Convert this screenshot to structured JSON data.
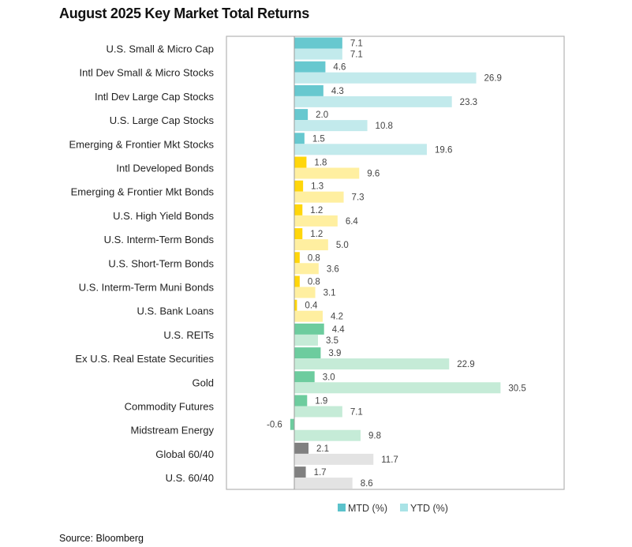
{
  "chart_data": {
    "type": "bar",
    "orientation": "horizontal",
    "title": "August 2025 Key Market Total Returns",
    "source": "Source: Bloomberg",
    "categories": [
      "U.S. Small & Micro Cap",
      "Intl Dev Small & Micro Stocks",
      "Intl Dev Large Cap Stocks",
      "U.S. Large Cap Stocks",
      "Emerging & Frontier Mkt Stocks",
      "Intl Developed Bonds",
      "Emerging & Frontier Mkt Bonds",
      "U.S. High Yield Bonds",
      "U.S. Interm-Term Bonds",
      "U.S. Short-Term Bonds",
      "U.S. Interm-Term Muni Bonds",
      "U.S. Bank Loans",
      "U.S. REITs",
      "Ex U.S. Real Estate Securities",
      "Gold",
      "Commodity Futures",
      "Midstream Energy",
      "Global 60/40",
      "U.S. 60/40"
    ],
    "groups": [
      "equity",
      "equity",
      "equity",
      "equity",
      "equity",
      "bond",
      "bond",
      "bond",
      "bond",
      "bond",
      "bond",
      "bond",
      "real",
      "real",
      "real",
      "real",
      "real",
      "mix",
      "mix"
    ],
    "series": [
      {
        "name": "MTD (%)",
        "values": [
          7.1,
          4.6,
          4.3,
          2.0,
          1.5,
          1.8,
          1.3,
          1.2,
          1.2,
          0.8,
          0.8,
          0.4,
          4.4,
          3.9,
          3.0,
          1.9,
          -0.6,
          2.1,
          1.7
        ]
      },
      {
        "name": "YTD (%)",
        "values": [
          7.1,
          26.9,
          23.3,
          10.8,
          19.6,
          9.6,
          7.3,
          6.4,
          5.0,
          3.6,
          3.1,
          4.2,
          3.5,
          22.9,
          30.5,
          7.1,
          9.8,
          11.7,
          8.6
        ]
      }
    ],
    "xlim": [
      -10,
      40
    ],
    "grid": false,
    "legend": "bottom",
    "colors": {
      "equity": [
        "#67C8CF",
        "#C2EAEC"
      ],
      "bond": [
        "#FFD60A",
        "#FFEFA0"
      ],
      "real": [
        "#6DCC9E",
        "#C5EBD7"
      ],
      "mix": [
        "#808080",
        "#E3E3E3"
      ],
      "legend": [
        "#5BC2CB",
        "#A9E3E6"
      ]
    }
  }
}
